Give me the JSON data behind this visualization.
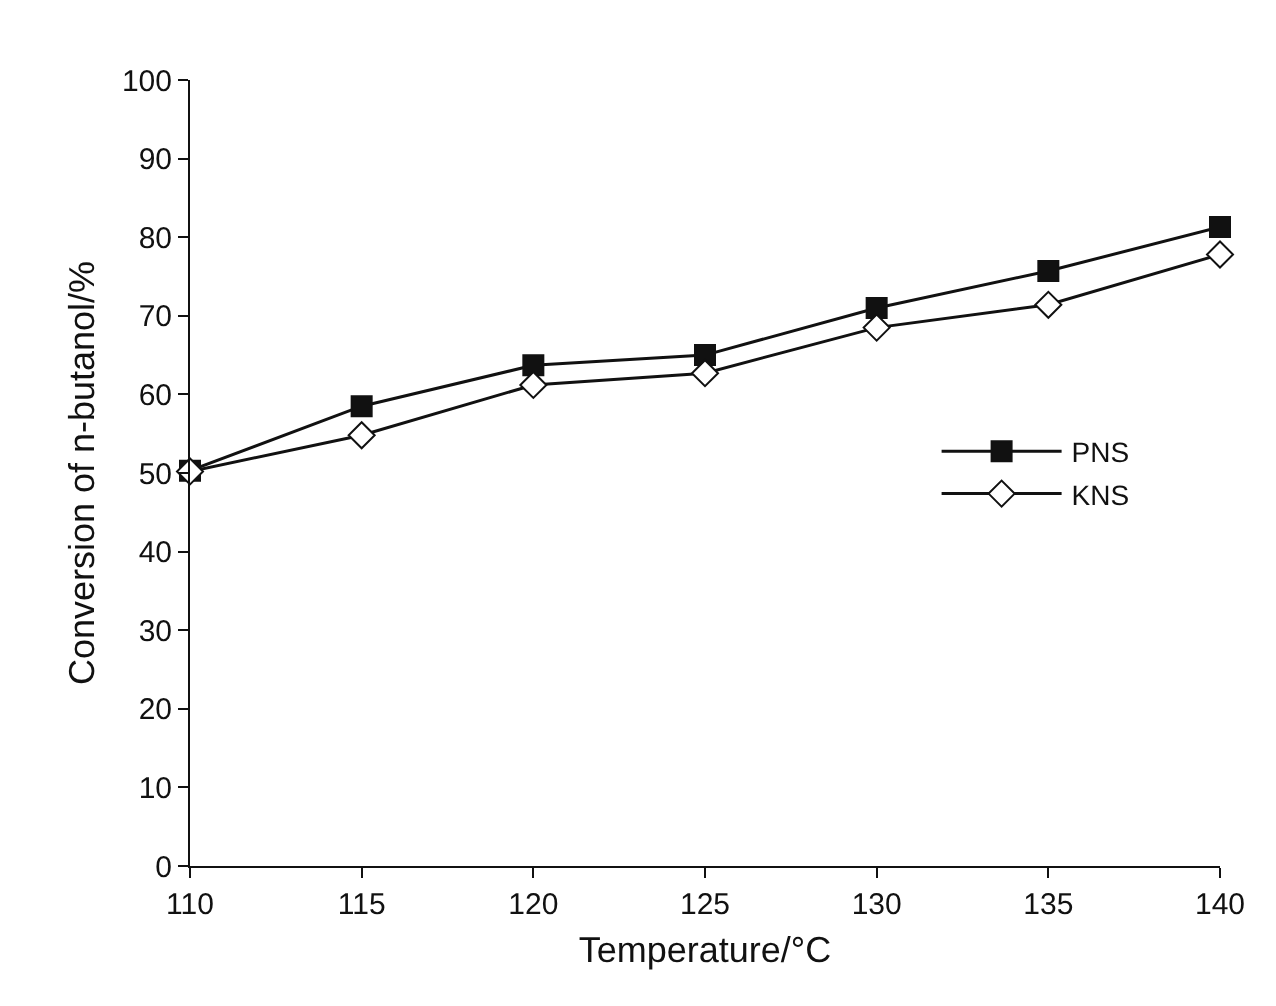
{
  "chart_data": {
    "type": "line",
    "xlabel": "Temperature/°C",
    "ylabel": "Conversion of n-butanol/%",
    "x": [
      110,
      115,
      120,
      125,
      130,
      135,
      140
    ],
    "series": [
      {
        "name": "PNS",
        "color": "#111111",
        "marker": "square",
        "values": [
          50.3,
          58.5,
          63.7,
          65,
          71,
          75.7,
          81.3
        ]
      },
      {
        "name": "KNS",
        "color": "#111111",
        "marker": "diamond-open",
        "values": [
          50.2,
          54.8,
          61.2,
          62.7,
          68.5,
          71.4,
          77.8
        ]
      }
    ],
    "xlim": [
      110,
      140
    ],
    "xticks": [
      110,
      115,
      120,
      125,
      130,
      135,
      140
    ],
    "ylim": [
      0,
      100
    ],
    "yticks": [
      0,
      10,
      20,
      30,
      40,
      50,
      60,
      70,
      80,
      90,
      100
    ],
    "grid": false,
    "legend": "right",
    "line_style": "solid"
  }
}
